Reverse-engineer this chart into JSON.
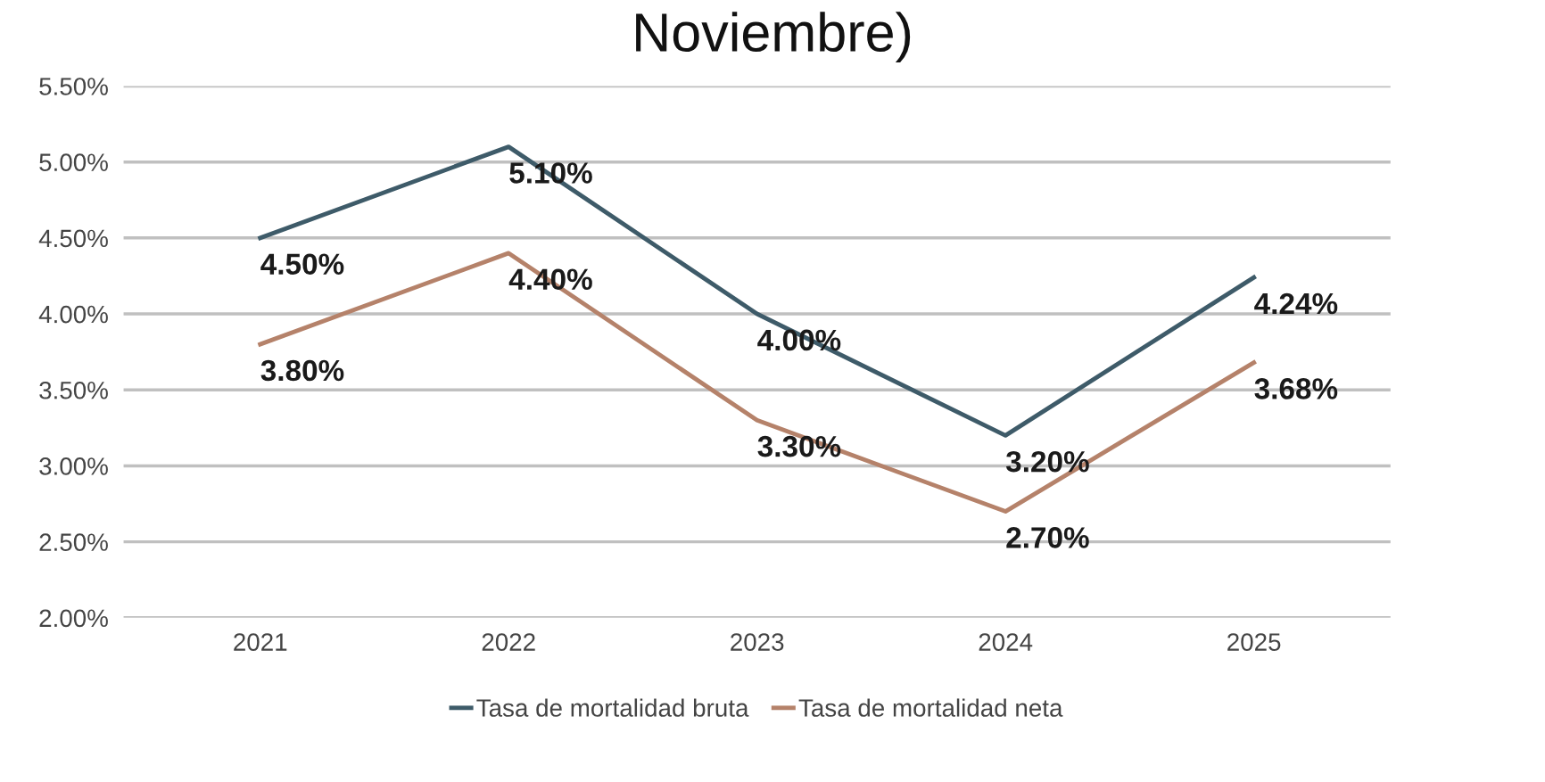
{
  "chart_data": {
    "type": "line",
    "title": "Noviembre)",
    "categories": [
      "2021",
      "2022",
      "2023",
      "2024",
      "2025"
    ],
    "series": [
      {
        "name": "Tasa de mortalidad bruta",
        "color": "#3e5b69",
        "values": [
          4.5,
          5.1,
          4.0,
          3.2,
          4.24
        ],
        "value_labels": [
          "4.50%",
          "5.10%",
          "4.00%",
          "3.20%",
          "4.24%"
        ]
      },
      {
        "name": "Tasa de mortalidad neta",
        "color": "#b5826a",
        "values": [
          3.8,
          4.4,
          3.3,
          2.7,
          3.68
        ],
        "value_labels": [
          "3.80%",
          "4.40%",
          "3.30%",
          "2.70%",
          "3.68%"
        ]
      }
    ],
    "ylim": [
      2,
      5.5
    ],
    "yticks": [
      {
        "value": 2,
        "label": "2.00%"
      },
      {
        "value": 2.5,
        "label": "2.50%"
      },
      {
        "value": 3,
        "label": "3.00%"
      },
      {
        "value": 3.5,
        "label": "3.50%"
      },
      {
        "value": 4,
        "label": "4.00%"
      },
      {
        "value": 4.5,
        "label": "4.50%"
      },
      {
        "value": 5,
        "label": "5.00%"
      },
      {
        "value": 5.5,
        "label": "5.50%"
      }
    ],
    "grid": "y",
    "legend": "bottom",
    "marker": "none",
    "line_style": "solid"
  }
}
